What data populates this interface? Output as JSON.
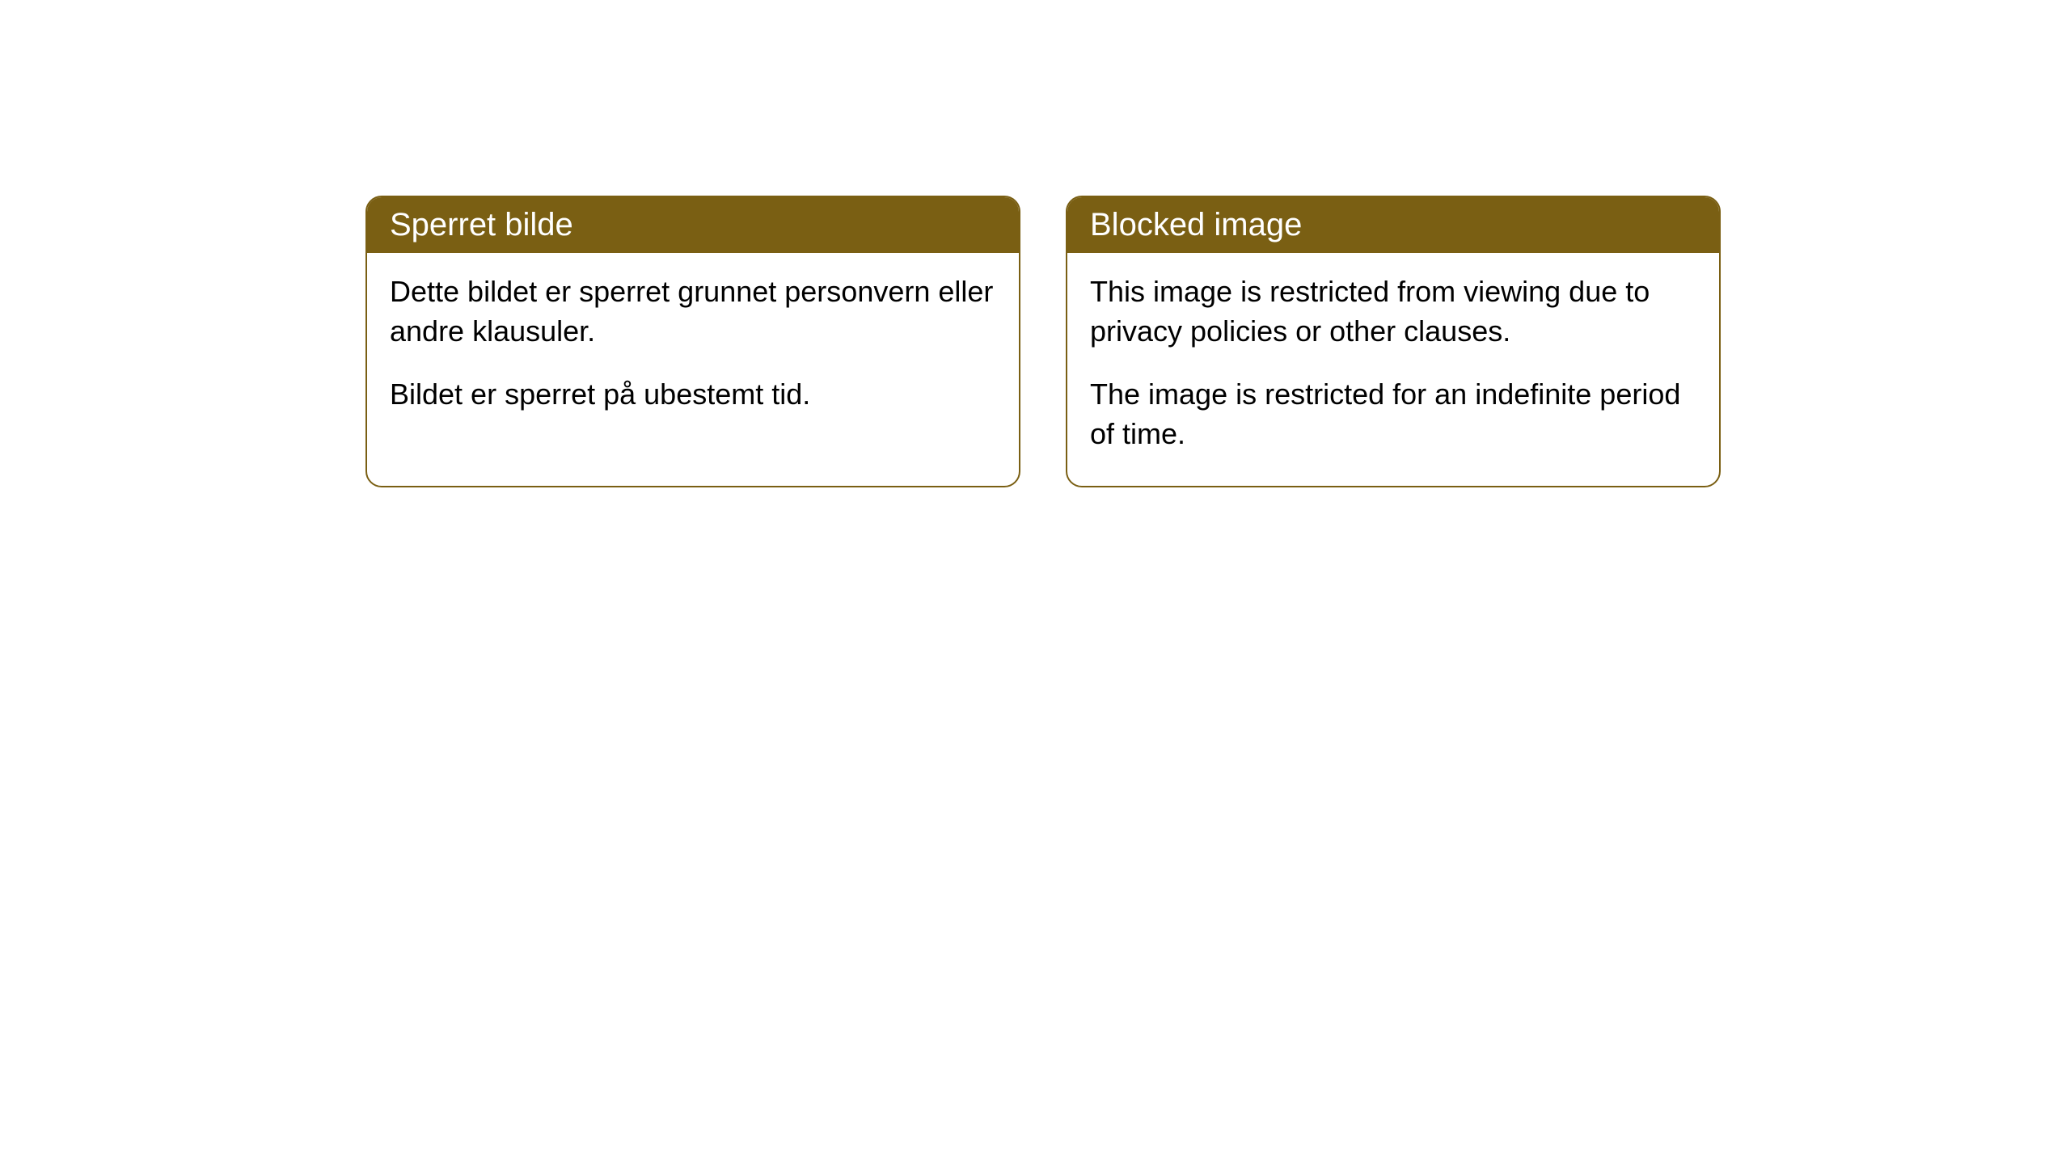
{
  "cards": [
    {
      "title": "Sperret bilde",
      "paragraph1": "Dette bildet er sperret grunnet personvern eller andre klausuler.",
      "paragraph2": "Bildet er sperret på ubestemt tid."
    },
    {
      "title": "Blocked image",
      "paragraph1": "This image is restricted from viewing due to privacy policies or other clauses.",
      "paragraph2": "The image is restricted for an indefinite period of time."
    }
  ],
  "style": {
    "header_background": "#7a5f13",
    "header_text_color": "#ffffff",
    "border_color": "#7a5f13",
    "body_background": "#ffffff",
    "body_text_color": "#000000",
    "border_radius": 20,
    "header_fontsize": 40,
    "body_fontsize": 36
  }
}
